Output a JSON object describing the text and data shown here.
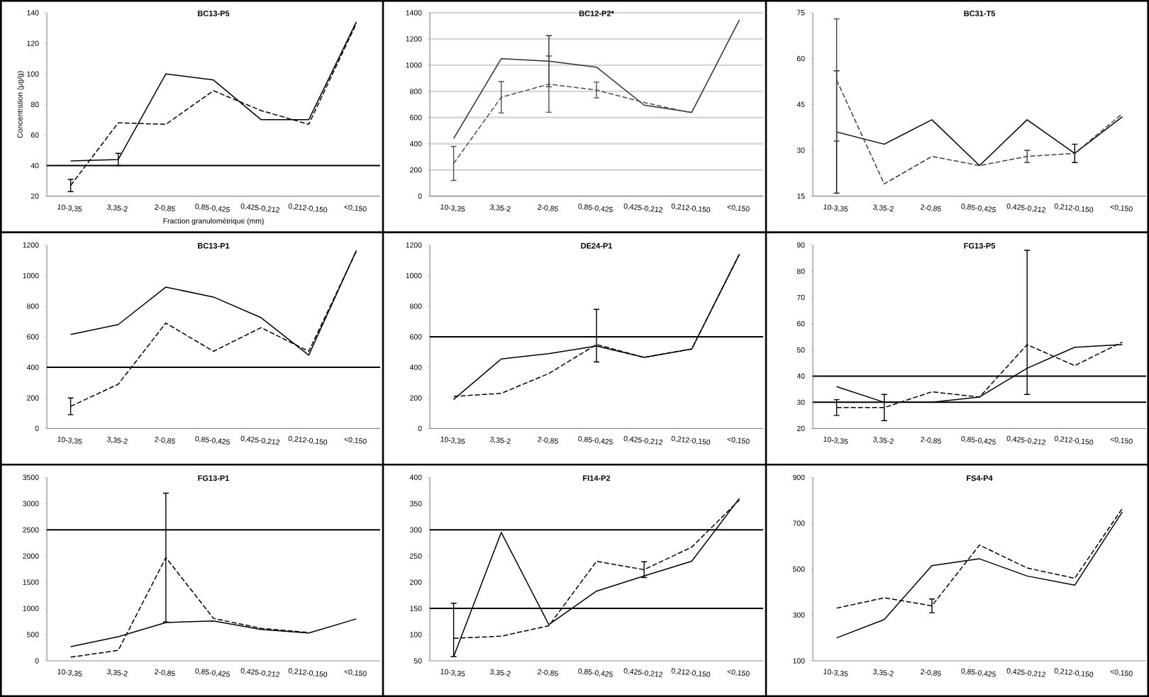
{
  "chart_data": [
    {
      "type": "line",
      "title": "BC13-P5",
      "xlabel": "Fraction granulométrique (mm)",
      "ylabel": "Concentration (µg/g)",
      "categories": [
        "10-3,35",
        "3,35-2",
        "2-0,85",
        "0,85-0,425",
        "0,425-0,212",
        "0,212-0,150",
        "<0,150"
      ],
      "ylim": [
        20,
        140
      ],
      "yticks": [
        20,
        40,
        60,
        80,
        100,
        120,
        140
      ],
      "ref_lines": [
        {
          "axis": "y",
          "value": 40,
          "color": "#000000"
        }
      ],
      "series": [
        {
          "color": "#000000",
          "line_style": "solid",
          "values": [
            43,
            44,
            100,
            96,
            70,
            70,
            134
          ],
          "errors": [
            null,
            4,
            null,
            null,
            null,
            null,
            null
          ]
        },
        {
          "color": "#000000",
          "line_style": "dashed",
          "values": [
            27,
            68,
            67,
            89,
            76,
            67,
            133
          ],
          "errors": [
            4,
            null,
            null,
            null,
            null,
            null,
            null
          ]
        }
      ]
    },
    {
      "type": "line",
      "title": "BC12-P2*",
      "categories": [
        "10-3,35",
        "3,35-2",
        "2-0,85",
        "0,85-0,425",
        "0,425-0,212",
        "0,212-0,150",
        "<0,150"
      ],
      "ylim": [
        0,
        1400
      ],
      "yticks": [
        0,
        200,
        400,
        600,
        800,
        1000,
        1200,
        1400
      ],
      "grid": true,
      "series": [
        {
          "color": "#303030",
          "line_style": "solid",
          "values": [
            440,
            1050,
            1030,
            985,
            695,
            640,
            1345
          ],
          "errors": [
            null,
            null,
            195,
            null,
            null,
            null,
            null
          ]
        },
        {
          "color": "#505050",
          "line_style": "dashed",
          "values": [
            250,
            755,
            855,
            810,
            715,
            635,
            null
          ],
          "errors": [
            130,
            120,
            215,
            60,
            null,
            null,
            null
          ]
        }
      ]
    },
    {
      "type": "line",
      "title": "BC31-T5",
      "categories": [
        "10-3,35",
        "3,35-2",
        "2-0,85",
        "0,85-0,425",
        "0,425-0,212",
        "0,212-0,150",
        "<0,150"
      ],
      "ylim": [
        15,
        75
      ],
      "yticks": [
        15,
        30,
        45,
        60,
        75
      ],
      "series": [
        {
          "color": "#000000",
          "line_style": "solid",
          "values": [
            36,
            32,
            40,
            25,
            40,
            29,
            41
          ],
          "errors": [
            20,
            null,
            null,
            null,
            null,
            3,
            null
          ]
        },
        {
          "color": "#404040",
          "line_style": "dashed",
          "values": [
            53,
            19,
            28,
            25,
            28,
            29,
            42
          ],
          "errors": [
            20,
            null,
            null,
            null,
            2,
            null,
            null
          ]
        }
      ]
    },
    {
      "type": "line",
      "title": "BC13-P1",
      "categories": [
        "10-3,35",
        "3,35-2",
        "2-0,85",
        "0,85-0,425",
        "0,425-0,212",
        "0,212-0,150",
        "<0,150"
      ],
      "ylim": [
        0,
        1200
      ],
      "yticks": [
        0,
        200,
        400,
        600,
        800,
        1000,
        1200
      ],
      "ref_lines": [
        {
          "axis": "y",
          "value": 400,
          "color": "#000000"
        }
      ],
      "series": [
        {
          "color": "#000000",
          "line_style": "solid",
          "values": [
            615,
            680,
            925,
            860,
            725,
            480,
            1165
          ]
        },
        {
          "color": "#000000",
          "line_style": "dashed",
          "values": [
            145,
            290,
            690,
            505,
            660,
            505,
            1160
          ],
          "errors": [
            55,
            null,
            null,
            null,
            null,
            null,
            null
          ]
        }
      ]
    },
    {
      "type": "line",
      "title": "DE24-P1",
      "categories": [
        "10-3,35",
        "3,35-2",
        "2-0,85",
        "0,85-0,425",
        "0,425-0,212",
        "0,212-0,150",
        "<0,150"
      ],
      "ylim": [
        0,
        1200
      ],
      "yticks": [
        0,
        200,
        400,
        600,
        800,
        1000,
        1200
      ],
      "ref_lines": [
        {
          "axis": "y",
          "value": 600,
          "color": "#000000"
        }
      ],
      "series": [
        {
          "color": "#000000",
          "line_style": "solid",
          "values": [
            190,
            455,
            490,
            540,
            465,
            520,
            1140
          ]
        },
        {
          "color": "#000000",
          "line_style": "dashed",
          "values": [
            210,
            230,
            360,
            550,
            465,
            520,
            1140
          ],
          "errors": [
            null,
            null,
            null,
            [
              435,
              780
            ],
            null,
            null,
            null
          ]
        }
      ]
    },
    {
      "type": "line",
      "title": "FG13-P5",
      "categories": [
        "10-3,35",
        "3,35-2",
        "2-0,85",
        "0,85-0,425",
        "0,425-0,212",
        "0,212-0,150",
        "<0,150"
      ],
      "ylim": [
        20,
        90
      ],
      "yticks": [
        20,
        30,
        40,
        50,
        60,
        70,
        80,
        90
      ],
      "ref_lines": [
        {
          "axis": "y",
          "value": 40,
          "color": "#000000"
        },
        {
          "axis": "y",
          "value": 30,
          "color": "#000000"
        }
      ],
      "series": [
        {
          "color": "#000000",
          "line_style": "solid",
          "values": [
            36,
            30,
            30,
            32,
            43,
            51,
            52
          ]
        },
        {
          "color": "#000000",
          "line_style": "dashed",
          "values": [
            28,
            28,
            34,
            32,
            52,
            44,
            53
          ],
          "errors": [
            3,
            5,
            null,
            null,
            [
              33,
              88
            ],
            null,
            null
          ]
        }
      ]
    },
    {
      "type": "line",
      "title": "FG13-P1",
      "categories": [
        "10-3,35",
        "3,35-2",
        "2-0,85",
        "0,85-0,425",
        "0,425-0,212",
        "0,212-0,150",
        "<0,150"
      ],
      "ylim": [
        0,
        3500
      ],
      "yticks": [
        0,
        500,
        1000,
        1500,
        2000,
        2500,
        3000,
        3500
      ],
      "ref_lines": [
        {
          "axis": "y",
          "value": 2500,
          "color": "#000000"
        }
      ],
      "series": [
        {
          "color": "#000000",
          "line_style": "solid",
          "values": [
            270,
            460,
            730,
            760,
            600,
            530,
            800
          ]
        },
        {
          "color": "#000000",
          "line_style": "dashed",
          "values": [
            70,
            200,
            1970,
            810,
            620,
            540,
            null
          ],
          "errors": [
            null,
            null,
            1230,
            null,
            null,
            null,
            null
          ]
        }
      ]
    },
    {
      "type": "line",
      "title": "FI14-P2",
      "categories": [
        "10-3,35",
        "3,35-2",
        "2-0,85",
        "0,85-0,425",
        "0,425-0,212",
        "0,212-0,150",
        "<0,150"
      ],
      "ylim": [
        50,
        400
      ],
      "yticks": [
        50,
        100,
        150,
        200,
        250,
        300,
        350,
        400
      ],
      "ref_lines": [
        {
          "axis": "y",
          "value": 300,
          "color": "#000000"
        },
        {
          "axis": "y",
          "value": 150,
          "color": "#000000"
        }
      ],
      "series": [
        {
          "color": "#000000",
          "line_style": "solid",
          "values": [
            58,
            295,
            119,
            183,
            212,
            240,
            360
          ],
          "errors": [
            [
              58,
              160
            ],
            null,
            null,
            null,
            null,
            null,
            null
          ]
        },
        {
          "color": "#000000",
          "line_style": "dashed",
          "values": [
            93,
            97,
            117,
            240,
            224,
            267,
            357
          ],
          "errors": [
            null,
            null,
            null,
            null,
            15,
            null,
            null
          ]
        }
      ]
    },
    {
      "type": "line",
      "title": "FS4-P4",
      "categories": [
        "10-3,35",
        "3,35-2",
        "2-0,85",
        "0,85-0,425",
        "0,425-0,212",
        "0,212-0,150",
        "<0,150"
      ],
      "ylim": [
        100,
        900
      ],
      "yticks": [
        100,
        300,
        500,
        700,
        900
      ],
      "series": [
        {
          "color": "#000000",
          "line_style": "solid",
          "values": [
            200,
            280,
            515,
            545,
            470,
            430,
            750
          ]
        },
        {
          "color": "#000000",
          "line_style": "dashed",
          "values": [
            330,
            375,
            340,
            605,
            505,
            460,
            765
          ],
          "errors": [
            null,
            null,
            30,
            null,
            null,
            null,
            null
          ]
        }
      ]
    }
  ]
}
